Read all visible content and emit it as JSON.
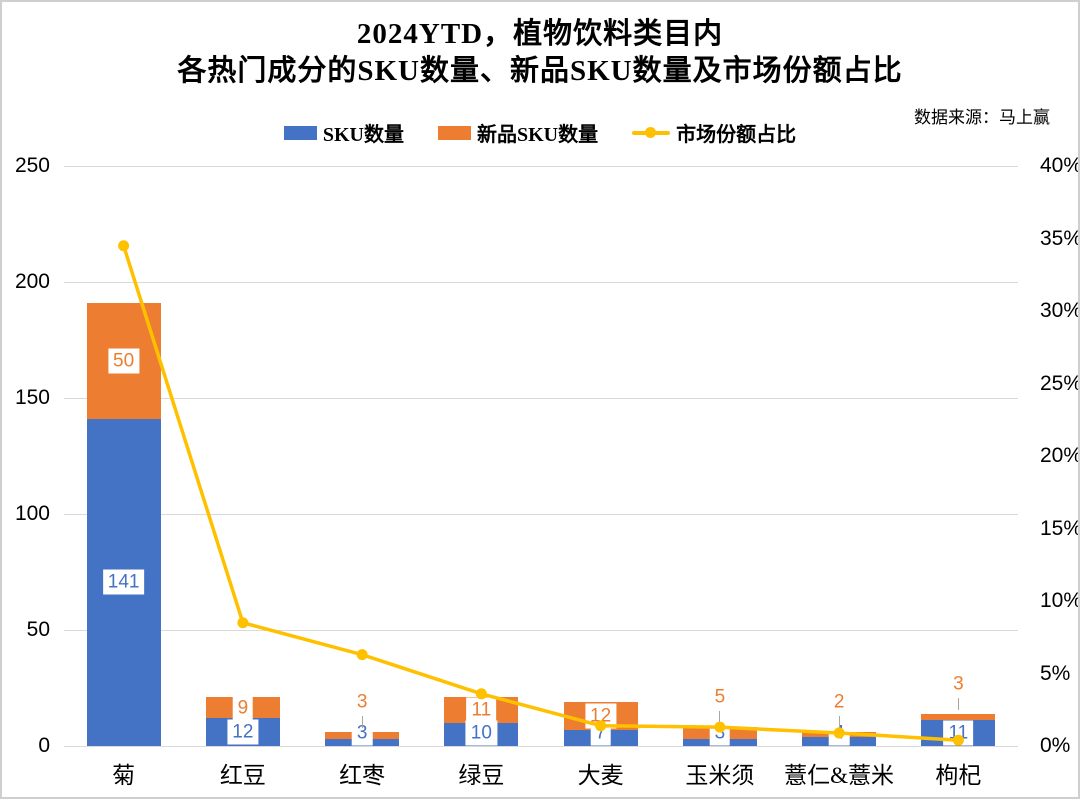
{
  "chart_data": {
    "type": "combo-bar-line",
    "title_line1": "2024YTD，植物饮料类目内",
    "title_line2": "各热门成分的SKU数量、新品SKU数量及市场份额占比",
    "source": "数据来源：马上赢",
    "categories": [
      "菊",
      "红豆",
      "红枣",
      "绿豆",
      "大麦",
      "玉米须",
      "薏仁&薏米",
      "枸杞"
    ],
    "series": [
      {
        "name": "SKU数量",
        "type": "bar",
        "stacked": true,
        "axis": "left",
        "color": "#4472C4",
        "values": [
          141,
          12,
          3,
          10,
          7,
          3,
          4,
          11
        ]
      },
      {
        "name": "新品SKU数量",
        "type": "bar",
        "stacked": true,
        "axis": "left",
        "color": "#ED7D31",
        "values": [
          50,
          9,
          3,
          11,
          12,
          5,
          2,
          3
        ]
      },
      {
        "name": "市场份额占比",
        "type": "line",
        "axis": "right",
        "color": "#FFC000",
        "values": [
          34.5,
          8.5,
          6.3,
          3.6,
          1.4,
          1.3,
          0.9,
          0.4
        ],
        "unit": "%"
      }
    ],
    "left_axis": {
      "min": 0,
      "max": 250,
      "ticks": [
        "0",
        "50",
        "100",
        "150",
        "200",
        "250"
      ]
    },
    "right_axis": {
      "min": 0,
      "max": 40,
      "ticks": [
        "0%",
        "5%",
        "10%",
        "15%",
        "20%",
        "25%",
        "30%",
        "35%",
        "40%"
      ]
    },
    "grid": "horizontal",
    "legend_position": "top",
    "colors": {
      "gridline": "#D9D9D9",
      "leader_line": "#A6A6A6",
      "label_box_bg": "#FFFFFF",
      "axis_text": "#000000"
    }
  }
}
